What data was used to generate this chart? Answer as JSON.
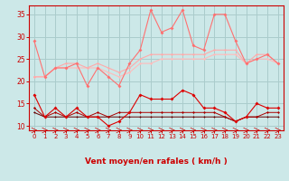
{
  "x": [
    0,
    1,
    2,
    3,
    4,
    5,
    6,
    7,
    8,
    9,
    10,
    11,
    12,
    13,
    14,
    15,
    16,
    17,
    18,
    19,
    20,
    21,
    22,
    23
  ],
  "line1": [
    29,
    21,
    23,
    23,
    24,
    19,
    23,
    21,
    19,
    24,
    27,
    36,
    31,
    32,
    36,
    28,
    27,
    35,
    35,
    29,
    24,
    25,
    26,
    24
  ],
  "line2": [
    21,
    21,
    23,
    24,
    24,
    23,
    24,
    23,
    22,
    23,
    25,
    26,
    26,
    26,
    26,
    26,
    26,
    27,
    27,
    27,
    24,
    26,
    26,
    24
  ],
  "line3": [
    21,
    21,
    23,
    23,
    23,
    23,
    23,
    22,
    21,
    22,
    24,
    24,
    25,
    25,
    25,
    25,
    25,
    26,
    26,
    26,
    24,
    25,
    25,
    24
  ],
  "line4": [
    17,
    12,
    14,
    12,
    14,
    12,
    12,
    10,
    11,
    13,
    17,
    16,
    16,
    16,
    18,
    17,
    14,
    14,
    13,
    11,
    12,
    15,
    14,
    14
  ],
  "line5": [
    14,
    12,
    13,
    12,
    13,
    12,
    13,
    12,
    13,
    13,
    13,
    13,
    13,
    13,
    13,
    13,
    13,
    13,
    12,
    11,
    12,
    12,
    13,
    13
  ],
  "line6": [
    13,
    12,
    12,
    12,
    12,
    12,
    12,
    12,
    12,
    12,
    12,
    12,
    12,
    12,
    12,
    12,
    12,
    12,
    12,
    11,
    12,
    12,
    12,
    12
  ],
  "bg_color": "#cce8e8",
  "grid_color": "#aacccc",
  "line1_color": "#ff7070",
  "line2_color": "#ffaaaa",
  "line3_color": "#ffbbbb",
  "line4_color": "#dd0000",
  "line5_color": "#aa0000",
  "line6_color": "#660000",
  "xlabel": "Vent moyen/en rafales ( km/h )",
  "ylim": [
    9,
    37
  ],
  "yticks": [
    10,
    15,
    20,
    25,
    30,
    35
  ],
  "xticks": [
    0,
    1,
    2,
    3,
    4,
    5,
    6,
    7,
    8,
    9,
    10,
    11,
    12,
    13,
    14,
    15,
    16,
    17,
    18,
    19,
    20,
    21,
    22,
    23
  ]
}
